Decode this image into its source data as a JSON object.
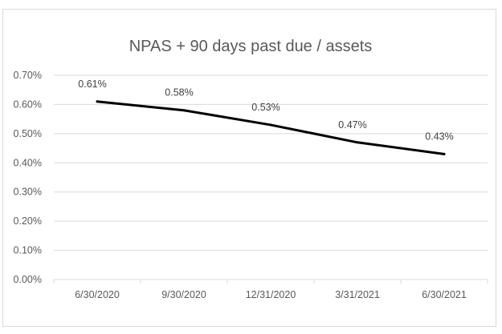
{
  "chart_data": {
    "type": "line",
    "title": "NPAS + 90 days past due / assets",
    "categories": [
      "6/30/2020",
      "9/30/2020",
      "12/31/2020",
      "3/31/2021",
      "6/30/2021"
    ],
    "series": [
      {
        "values": [
          0.61,
          0.58,
          0.53,
          0.47,
          0.43
        ],
        "data_labels": [
          "0.61%",
          "0.58%",
          "0.53%",
          "0.47%",
          "0.43%"
        ],
        "color": "#000000"
      }
    ],
    "ylim": [
      0,
      0.7
    ],
    "yticks": [
      0,
      0.1,
      0.2,
      0.3,
      0.4,
      0.5,
      0.6,
      0.7
    ],
    "ytick_labels": [
      "0.00%",
      "0.10%",
      "0.20%",
      "0.30%",
      "0.40%",
      "0.50%",
      "0.60%",
      "0.70%"
    ],
    "grid": true,
    "legend": "none"
  }
}
